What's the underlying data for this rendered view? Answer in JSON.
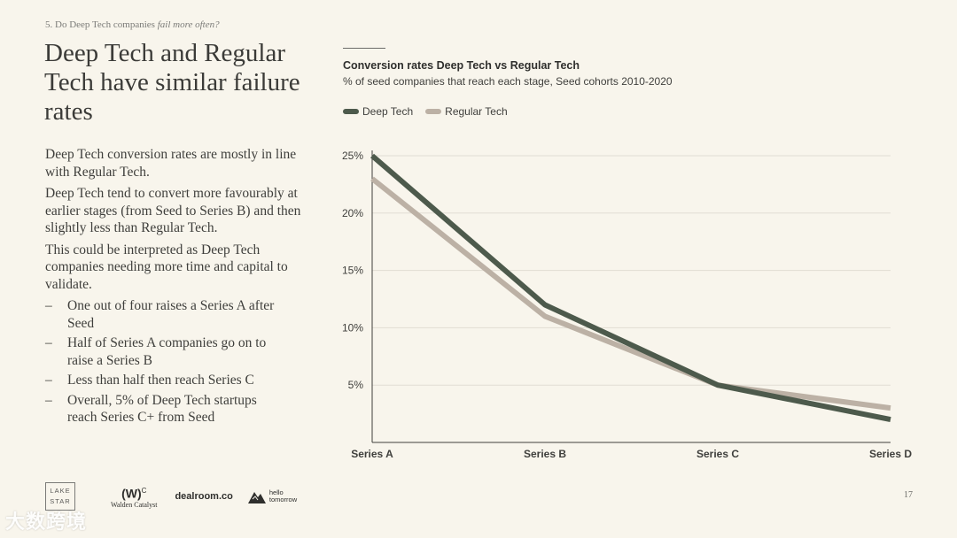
{
  "header": {
    "section": "5. Do Deep Tech companies ",
    "section_italic": "fail more often?",
    "title": "Deep Tech and Regular Tech have similar failure rates"
  },
  "body": {
    "paragraphs": [
      "Deep Tech conversion rates are mostly in line with Regular Tech.",
      "Deep Tech tend to convert more favourably at earlier stages (from Seed to Series B) and then slightly less than Regular Tech.",
      "This could be interpreted as Deep Tech companies needing more time and capital to validate."
    ],
    "bullet_marker": "–",
    "bullets": [
      "One out of four raises a Series A after Seed",
      "Half of Series A companies go on to raise a Series B",
      "Less than half then reach Series C",
      "Overall, 5% of Deep Tech startups reach Series C+ from Seed"
    ]
  },
  "chart_data": {
    "type": "line",
    "title": "Conversion rates Deep Tech vs Regular Tech",
    "subtitle": "% of seed companies that reach each stage, Seed cohorts 2010-2020",
    "categories": [
      "Series A",
      "Series B",
      "Series C",
      "Series D"
    ],
    "series": [
      {
        "name": "Deep Tech",
        "values": [
          25,
          12,
          5,
          2
        ],
        "color": "#4d5a4c"
      },
      {
        "name": "Regular Tech",
        "values": [
          23,
          11,
          5,
          3
        ],
        "color": "#bcb1a5"
      }
    ],
    "y_ticks": [
      {
        "value": 25,
        "label": "25%"
      },
      {
        "value": 20,
        "label": "20%"
      },
      {
        "value": 15,
        "label": "15%"
      },
      {
        "value": 10,
        "label": "10%"
      },
      {
        "value": 5,
        "label": "5%"
      }
    ],
    "ylim": [
      0,
      25
    ],
    "grid": true,
    "legend_position": "top-left"
  },
  "footer": {
    "page_number": "17",
    "logos": {
      "lake_star": [
        "LAKE",
        "STAR"
      ],
      "walden_mark": "(W)",
      "walden_sup": "C",
      "walden_name": "Walden Catalyst",
      "dealroom": "dealroom.co",
      "hello_tomorrow": [
        "hello",
        "tomorrow"
      ]
    },
    "watermark": "大数跨境"
  }
}
